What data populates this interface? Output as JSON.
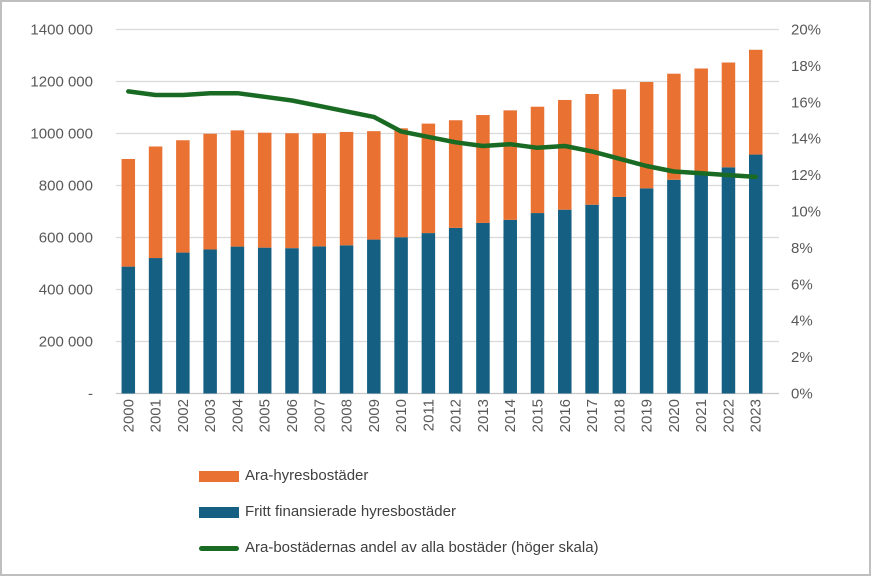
{
  "chart_data": {
    "type": "bar",
    "subtype": "stacked-bars-with-right-axis-line",
    "title": "",
    "categories": [
      "2000",
      "2001",
      "2002",
      "2003",
      "2004",
      "2005",
      "2006",
      "2007",
      "2008",
      "2009",
      "2010",
      "2011",
      "2012",
      "2013",
      "2014",
      "2015",
      "2016",
      "2017",
      "2018",
      "2019",
      "2020",
      "2021",
      "2022",
      "2023"
    ],
    "series": [
      {
        "name": "Ara-hyresbostäder",
        "type": "bar",
        "axis": "left",
        "color": "#E97132",
        "values": [
          414000,
          429000,
          432000,
          445000,
          447000,
          442000,
          442000,
          435000,
          436000,
          417000,
          419000,
          421000,
          414000,
          415000,
          421000,
          409000,
          422000,
          426000,
          414000,
          409000,
          408000,
          402000,
          403000,
          403000
        ]
      },
      {
        "name": "Fritt finansierade hyresbostäder",
        "type": "bar",
        "axis": "left",
        "color": "#156082",
        "values": [
          488000,
          521000,
          542000,
          554000,
          565000,
          561000,
          559000,
          566000,
          570000,
          592000,
          601000,
          617000,
          637000,
          656000,
          668000,
          694000,
          707000,
          726000,
          756000,
          789000,
          822000,
          848000,
          870000,
          919000
        ]
      },
      {
        "name": "Ara-bostädernas andel av alla bostäder (höger skala)",
        "type": "line",
        "axis": "right",
        "color": "#196B24",
        "values": [
          16.6,
          16.4,
          16.4,
          16.5,
          16.5,
          16.3,
          16.1,
          15.8,
          15.5,
          15.2,
          14.4,
          14.1,
          13.8,
          13.6,
          13.7,
          13.5,
          13.6,
          13.3,
          12.9,
          12.5,
          12.2,
          12.1,
          12.0,
          11.9
        ]
      }
    ],
    "stack_order_bottom_to_top": [
      "Fritt finansierade hyresbostäder",
      "Ara-hyresbostäder"
    ],
    "left_axis": {
      "min": 0,
      "max": 1400000,
      "tick_step": 200000,
      "tick_labels": [
        "-",
        "200 000",
        "400 000",
        "600 000",
        "800 000",
        "1000 000",
        "1200 000",
        "1400 000"
      ]
    },
    "right_axis": {
      "min": 0,
      "max": 20,
      "tick_step": 2,
      "tick_labels": [
        "0%",
        "2%",
        "4%",
        "6%",
        "8%",
        "10%",
        "12%",
        "14%",
        "16%",
        "18%",
        "20%"
      ]
    },
    "grid": true,
    "legend_position": "bottom-left",
    "styles": {
      "gridline_color": "#D9D9D9",
      "baseline_color": "#C6C6C6",
      "axis_text_color": "#595959",
      "legend_text_color": "#404040",
      "background_color": "#FFFFFF",
      "border_color": "#BFBFBF"
    }
  }
}
